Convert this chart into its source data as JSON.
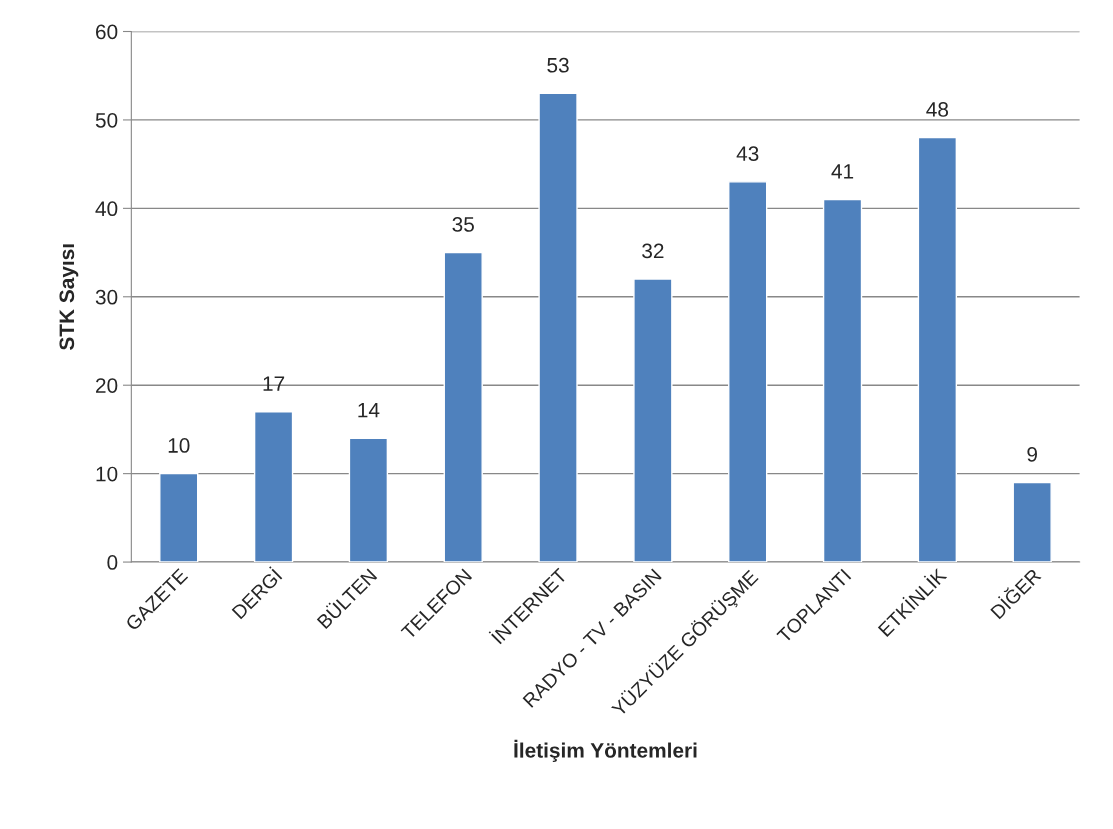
{
  "chart_data": {
    "type": "bar",
    "xlabel": "İletişim Yöntemleri",
    "ylabel": "STK Sayısı",
    "categories": [
      "GAZETE",
      "DERGİ",
      "BÜLTEN",
      "TELEFON",
      "İNTERNET",
      "RADYO - TV - BASIN",
      "YÜZYÜZE GÖRÜŞME",
      "TOPLANTI",
      "ETKİNLİK",
      "DİĞER"
    ],
    "values": [
      10,
      17,
      14,
      35,
      53,
      32,
      43,
      41,
      48,
      9
    ],
    "color": "#4f81bd",
    "ylim": [
      0,
      60
    ],
    "yticks": [
      0,
      10,
      20,
      30,
      40,
      50,
      60
    ],
    "grid": "y",
    "data_labels": true
  }
}
